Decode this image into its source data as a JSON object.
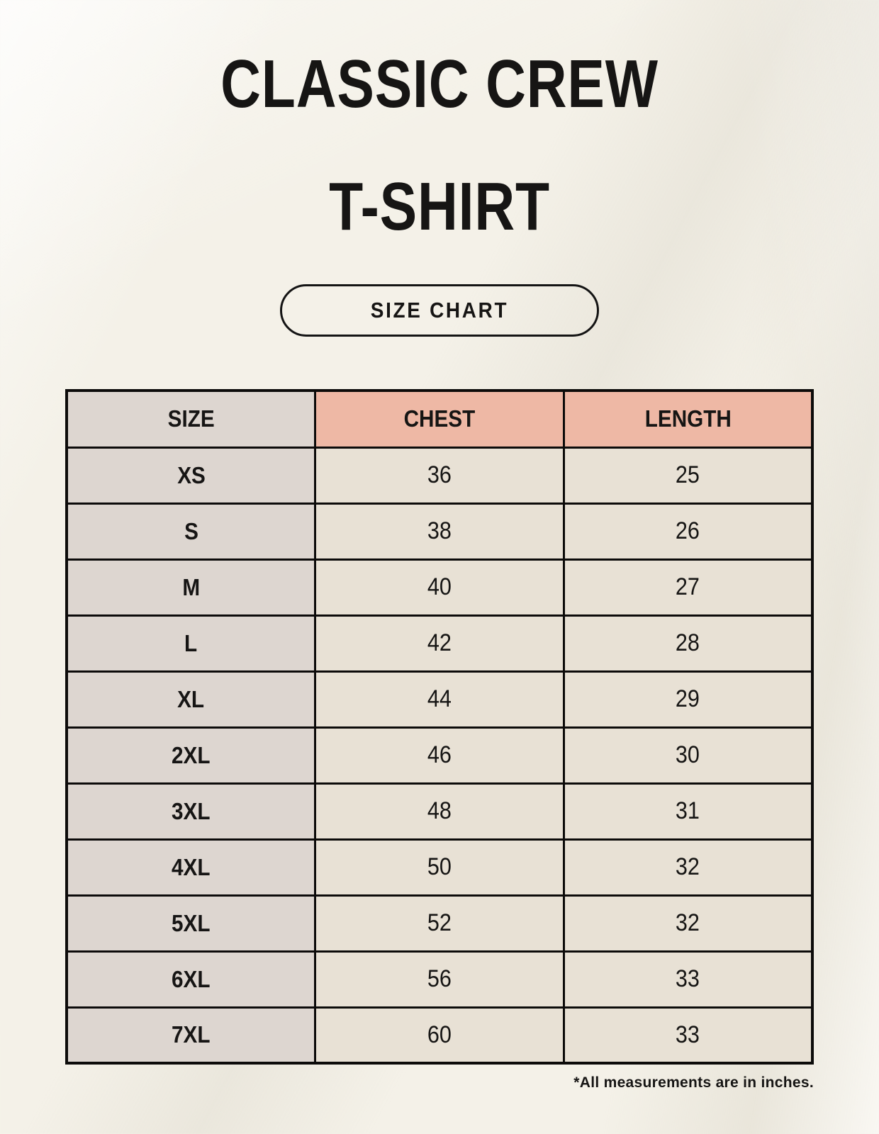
{
  "page": {
    "title_line1": "CLASSIC CREW",
    "title_line2": "T-SHIRT",
    "badge_label": "SIZE CHART",
    "footnote": "*All measurements are in inches."
  },
  "colors": {
    "page_background": "#f4f1e8",
    "size_column_bg": "#ddd6d0",
    "header_accent_bg": "#eeb8a5",
    "data_cell_bg": "#e8e1d5",
    "table_border": "#0c0b0a",
    "text": "#161514"
  },
  "chart_data": {
    "type": "table",
    "title": "CLASSIC CREW T-SHIRT",
    "subtitle": "SIZE CHART",
    "columns": [
      "SIZE",
      "CHEST",
      "LENGTH"
    ],
    "rows": [
      [
        "XS",
        "36",
        "25"
      ],
      [
        "S",
        "38",
        "26"
      ],
      [
        "M",
        "40",
        "27"
      ],
      [
        "L",
        "42",
        "28"
      ],
      [
        "XL",
        "44",
        "29"
      ],
      [
        "2XL",
        "46",
        "30"
      ],
      [
        "3XL",
        "48",
        "31"
      ],
      [
        "4XL",
        "50",
        "32"
      ],
      [
        "5XL",
        "52",
        "32"
      ],
      [
        "6XL",
        "56",
        "33"
      ],
      [
        "7XL",
        "60",
        "33"
      ]
    ],
    "units": "inches",
    "note": "*All measurements are in inches."
  }
}
